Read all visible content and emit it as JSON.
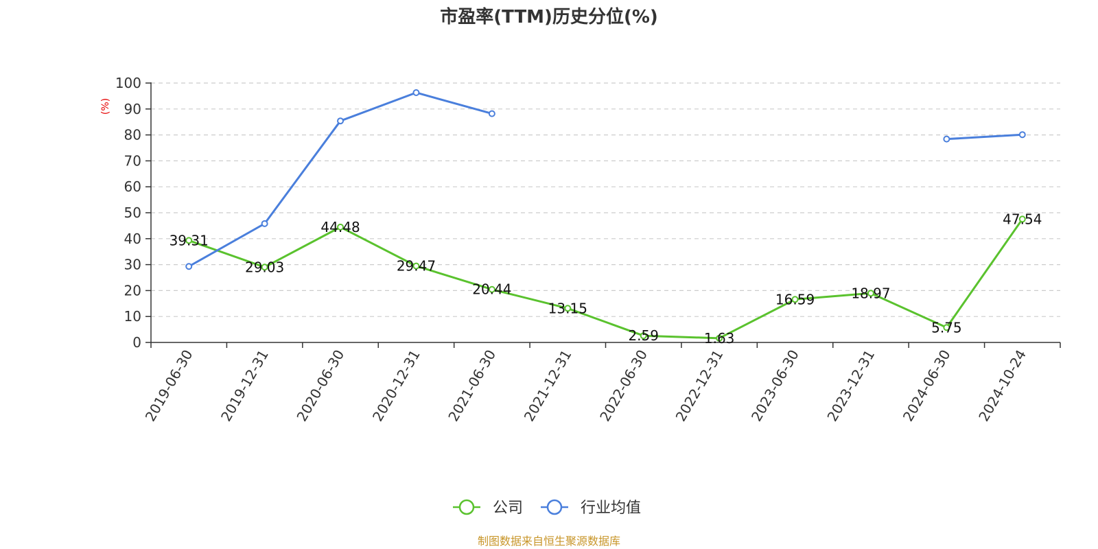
{
  "colors": {
    "company": "#5ac22e",
    "industry": "#4a7fdc",
    "unit": "#e60000",
    "source": "#c8962a",
    "grid": "#cccccc",
    "axis": "#333333"
  },
  "chart_data": {
    "type": "line",
    "title": "市盈率(TTM)历史分位(%)",
    "ylabel": "(%)",
    "ylim": [
      0,
      100
    ],
    "yticks": [
      0,
      10,
      20,
      30,
      40,
      50,
      60,
      70,
      80,
      90,
      100
    ],
    "categories": [
      "2019-06-30",
      "2019-12-31",
      "2020-06-30",
      "2020-12-31",
      "2021-06-30",
      "2021-12-31",
      "2022-06-30",
      "2022-12-31",
      "2023-06-30",
      "2023-12-31",
      "2024-06-30",
      "2024-10-24"
    ],
    "grid": true,
    "legend_position": "bottom",
    "series": [
      {
        "name": "公司",
        "color_key": "company",
        "values": [
          39.31,
          29.03,
          44.48,
          29.47,
          20.44,
          13.15,
          2.59,
          1.63,
          16.59,
          18.97,
          5.75,
          47.54
        ],
        "labels": [
          "39.31",
          "29.03",
          "44.48",
          "29.47",
          "20.44",
          "13.15",
          "2.59",
          "1.63",
          "16.59",
          "18.97",
          "5.75",
          "47.54"
        ]
      },
      {
        "name": "行业均值",
        "color_key": "industry",
        "values": [
          29.3,
          45.8,
          85.4,
          96.3,
          88.2,
          null,
          null,
          null,
          null,
          null,
          78.4,
          80.1
        ]
      }
    ]
  },
  "source_note": "制图数据来自恒生聚源数据库"
}
